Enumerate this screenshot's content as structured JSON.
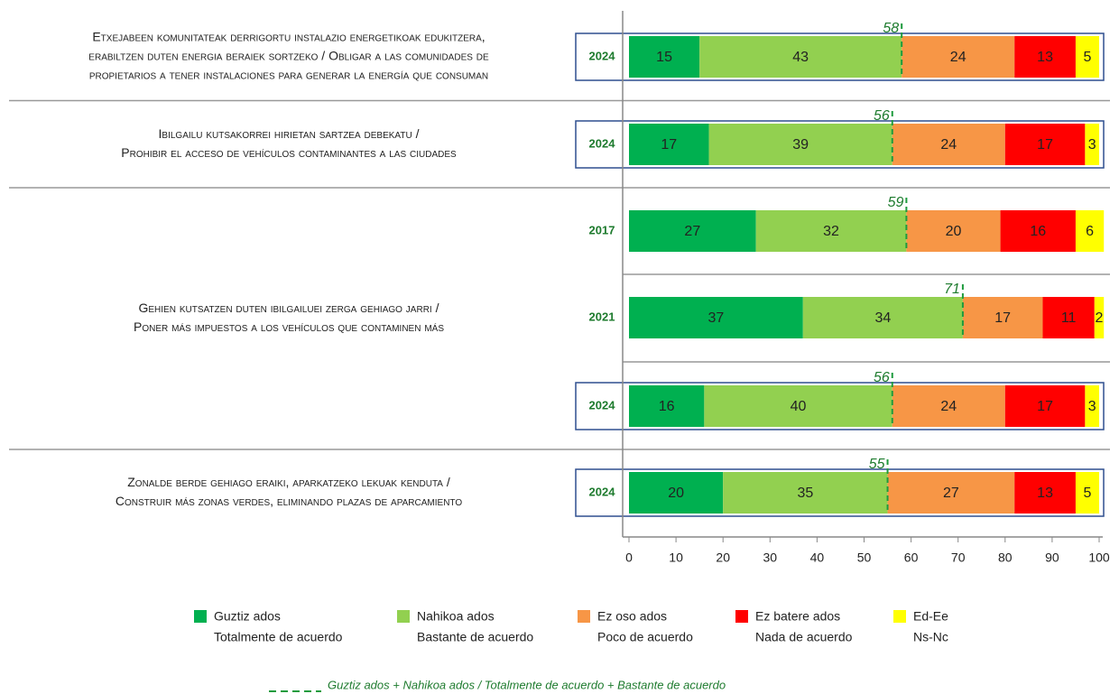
{
  "chart_data": {
    "type": "bar",
    "stacked": true,
    "orientation": "horizontal",
    "series": [
      {
        "name": [
          "Guztiz ados",
          "Totalmente de acuerdo"
        ],
        "color": "#00b050"
      },
      {
        "name": [
          "Nahikoa ados",
          "Bastante de acuerdo"
        ],
        "color": "#92d050"
      },
      {
        "name": [
          "Ez oso ados",
          "Poco de acuerdo"
        ],
        "color": "#f79646"
      },
      {
        "name": [
          "Ez batere ados",
          "Nada de acuerdo"
        ],
        "color": "#ff0000"
      },
      {
        "name": [
          "Ed-Ee",
          "Ns-Nc"
        ],
        "color": "#ffff00"
      }
    ],
    "groups": [
      {
        "label": [
          "Etxejabeen komunitateak derrigortu instalazio energetikoak edukitzera,",
          "erabiltzen duten energia beraiek sortzeko / Obligar a las comunidades de",
          "propietarios a tener instalaciones para generar la energía que consuman"
        ],
        "bars": [
          {
            "category": "2024",
            "values": [
              15,
              43,
              24,
              13,
              5
            ],
            "total": 58,
            "boxed": true
          }
        ]
      },
      {
        "label": [
          "Ibilgailu kutsakorrei hirietan sartzea debekatu /",
          "Prohibir el acceso de vehículos contaminantes a las ciudades"
        ],
        "bars": [
          {
            "category": "2024",
            "values": [
              17,
              39,
              24,
              17,
              3
            ],
            "total": 56,
            "boxed": true
          }
        ]
      },
      {
        "label": [
          "Gehien kutsatzen duten ibilgailuei zerga gehiago jarri /",
          "Poner más impuestos a los vehículos que contaminen más"
        ],
        "bars": [
          {
            "category": "2017",
            "values": [
              27,
              32,
              20,
              16,
              6
            ],
            "total": 59,
            "boxed": false
          },
          {
            "category": "2021",
            "values": [
              37,
              34,
              17,
              11,
              2
            ],
            "total": 71,
            "boxed": false
          },
          {
            "category": "2024",
            "values": [
              16,
              40,
              24,
              17,
              3
            ],
            "total": 56,
            "boxed": true
          }
        ]
      },
      {
        "label": [
          "Zonalde berde gehiago eraiki, aparkatzeko lekuak kenduta /",
          "Construir más zonas verdes, eliminando plazas de aparcamiento"
        ],
        "bars": [
          {
            "category": "2024",
            "values": [
              20,
              35,
              27,
              13,
              5
            ],
            "total": 55,
            "boxed": true
          }
        ]
      }
    ],
    "total_color": "#1e9b3e",
    "total_label": "Guztiz ados + Nahikoa ados / Totalmente de acuerdo + Bastante de acuerdo",
    "xlim": [
      0,
      100
    ],
    "xticks": [
      0,
      10,
      20,
      30,
      40,
      50,
      60,
      70,
      80,
      90,
      100
    ]
  }
}
